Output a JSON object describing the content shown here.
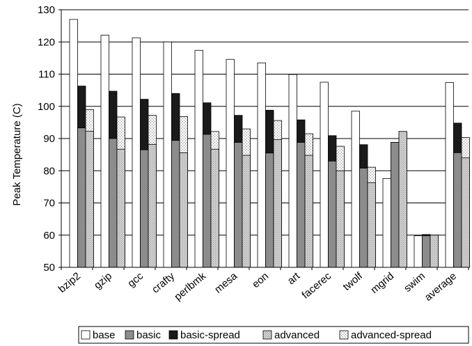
{
  "chart_data": {
    "type": "bar",
    "ylabel": "Peak Temperature (C)",
    "ylim": [
      50,
      130
    ],
    "yticks": [
      50,
      60,
      70,
      80,
      90,
      100,
      110,
      120,
      130
    ],
    "grid": true,
    "legend_position": "bottom",
    "categories": [
      "bzip2",
      "gzip",
      "gcc",
      "crafty",
      "perlbmk",
      "mesa",
      "eon",
      "art",
      "facerec",
      "twolf",
      "mgrid",
      "swim",
      "average"
    ],
    "series": [
      {
        "name": "base",
        "values": [
          127.0,
          122.1,
          121.3,
          120.0,
          117.4,
          114.6,
          113.5,
          109.9,
          107.5,
          98.5,
          77.6,
          59.8,
          107.4
        ]
      },
      {
        "name": "basic",
        "values": [
          93.3,
          90.0,
          86.5,
          89.4,
          91.3,
          88.8,
          85.5,
          88.8,
          83.0,
          80.8,
          88.8,
          59.8,
          85.6
        ]
      },
      {
        "name": "basic-spread",
        "values": [
          106.3,
          104.7,
          102.2,
          104.0,
          101.1,
          97.2,
          98.8,
          95.8,
          90.9,
          88.1,
          88.8,
          60.2,
          94.8
        ]
      },
      {
        "name": "advanced",
        "values": [
          92.3,
          86.7,
          88.2,
          85.6,
          86.7,
          84.8,
          89.7,
          84.8,
          80.0,
          76.3,
          92.2,
          60.0,
          84.0
        ]
      },
      {
        "name": "advanced-spread",
        "values": [
          99.0,
          96.7,
          97.2,
          96.8,
          92.2,
          93.0,
          95.6,
          91.5,
          87.6,
          81.1,
          92.2,
          60.0,
          90.3
        ]
      }
    ],
    "colors": {
      "base": "#ffffff",
      "basic": "#8c8c8c",
      "basic-spread": "#1a1a1a",
      "advanced": "#c8c8c8",
      "advanced-spread": "#e6e6e6"
    }
  }
}
